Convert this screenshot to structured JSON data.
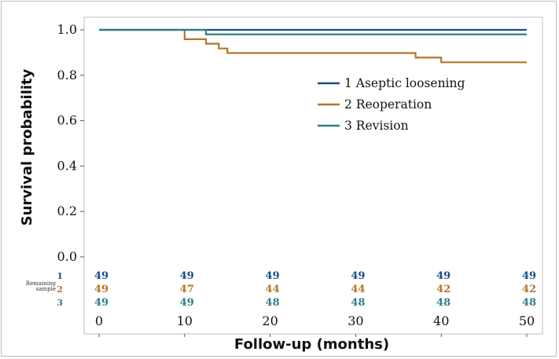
{
  "chart_data": {
    "type": "line",
    "title": "",
    "xlabel": "Follow-up (months)",
    "ylabel": "Survival probability",
    "xlim": [
      0,
      50
    ],
    "ylim": [
      0,
      1
    ],
    "x_ticks": [
      "0",
      "10",
      "20",
      "30",
      "40",
      "50"
    ],
    "y_ticks": [
      "0.0",
      "0.2",
      "0.4",
      "0.6",
      "0.8",
      "1.0"
    ],
    "legend_position": "right",
    "series": [
      {
        "id": "1",
        "name": "1 Aseptic loosening",
        "color": "#1a4f8a",
        "steps": [
          [
            0,
            1.0
          ],
          [
            50,
            1.0
          ]
        ]
      },
      {
        "id": "2",
        "name": "2 Reoperation",
        "color": "#b5762a",
        "steps": [
          [
            0,
            1.0
          ],
          [
            10,
            0.959
          ],
          [
            12.5,
            0.939
          ],
          [
            14,
            0.918
          ],
          [
            15,
            0.898
          ],
          [
            37,
            0.878
          ],
          [
            40,
            0.857
          ],
          [
            50,
            0.857
          ]
        ]
      },
      {
        "id": "3",
        "name": "3 Revision",
        "color": "#2f7f86",
        "steps": [
          [
            0,
            1.0
          ],
          [
            12.5,
            0.98
          ],
          [
            50,
            0.98
          ]
        ]
      }
    ],
    "risk_table": {
      "label": [
        "Remaining",
        "sample"
      ],
      "times": [
        0,
        10,
        20,
        30,
        40,
        50
      ],
      "rows": [
        {
          "id": "1",
          "values": [
            "49",
            "49",
            "49",
            "49",
            "49",
            "49"
          ]
        },
        {
          "id": "2",
          "values": [
            "49",
            "47",
            "44",
            "44",
            "42",
            "42"
          ]
        },
        {
          "id": "3",
          "values": [
            "49",
            "49",
            "48",
            "48",
            "48",
            "48"
          ]
        }
      ]
    }
  }
}
